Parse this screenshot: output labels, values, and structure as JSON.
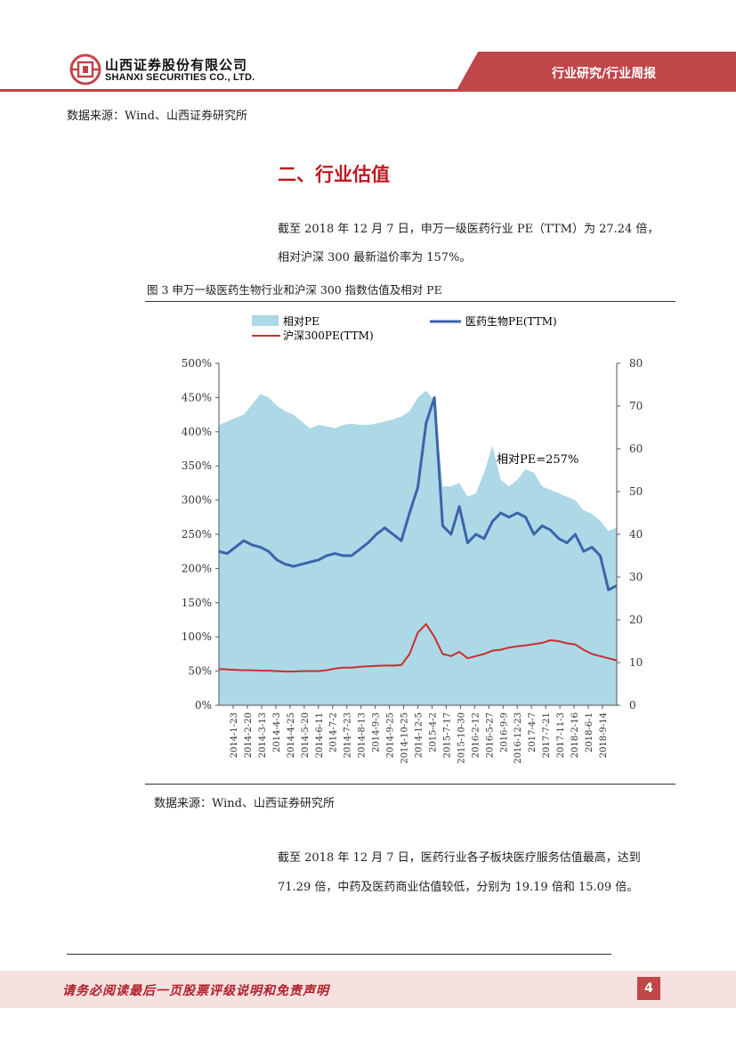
{
  "header": {
    "company_cn": "山西证券股份有限公司",
    "company_en": "SHANXI SECURITIES CO., LTD.",
    "category": "行业研究/行业周报",
    "colors": {
      "accent": "#c0464a",
      "title_red": "#c01820"
    }
  },
  "source_top": "数据来源：Wind、山西证券研究所",
  "section_title": "二、行业估值",
  "para1_line1": "截至 2018 年 12 月 7 日，申万一级医药行业 PE（TTM）为 27.24 倍，",
  "para1_line2": "相对沪深 300 最新溢价率为 157%。",
  "figure_title": "图 3  申万一级医药生物行业和沪深 300 指数估值及相对 PE",
  "source_figure": "数据来源：Wind、山西证券研究所",
  "para2_line1": "截至 2018 年 12 月 7 日，医药行业各子板块医疗服务估值最高，达到",
  "para2_line2": "71.29 倍，中药及医药商业估值较低，分别为 19.19 倍和 15.09 倍。",
  "footer_text": "请务必阅读最后一页股票评级说明和免责声明",
  "page_number": "4",
  "chart_data": {
    "type": "area",
    "legend": {
      "relative": "相对PE",
      "pharma": "医药生物PE(TTM)",
      "hs300": "沪深300PE(TTM)"
    },
    "annotation": "相对PE=257%",
    "left_axis": {
      "ylim": [
        0,
        500
      ],
      "ticks": [
        "0%",
        "50%",
        "100%",
        "150%",
        "200%",
        "250%",
        "300%",
        "350%",
        "400%",
        "450%",
        "500%"
      ]
    },
    "right_axis": {
      "ylim": [
        0,
        80
      ],
      "ticks": [
        "0",
        "10",
        "20",
        "30",
        "40",
        "50",
        "60",
        "70",
        "80"
      ]
    },
    "x_ticks": [
      "2014-1-23",
      "2014-2-20",
      "2014-3-13",
      "2014-4-3",
      "2014-4-25",
      "2014-5-20",
      "2014-6-11",
      "2014-7-2",
      "2014-7-23",
      "2014-8-13",
      "2014-9-3",
      "2014-9-25",
      "2014-10-25",
      "2014-12-5",
      "2015-4-2",
      "2015-7-17",
      "2015-10-30",
      "2016-2-12",
      "2016-5-27",
      "2016-9-9",
      "2016-12-23",
      "2017-4-7",
      "2017-7-21",
      "2017-11-3",
      "2018-2-16",
      "2018-6-1",
      "2018-9-14"
    ],
    "series": [
      {
        "name": "相对PE",
        "axis": "left",
        "color": "#add8e6",
        "values": [
          410,
          415,
          420,
          425,
          440,
          455,
          450,
          438,
          430,
          425,
          415,
          405,
          410,
          408,
          405,
          410,
          412,
          410,
          410,
          412,
          415,
          418,
          422,
          430,
          450,
          460,
          445,
          320,
          320,
          325,
          305,
          310,
          340,
          380,
          330,
          320,
          330,
          345,
          340,
          320,
          315,
          310,
          305,
          300,
          285,
          280,
          270,
          255,
          260
        ]
      },
      {
        "name": "医药生物PE(TTM)",
        "axis": "right",
        "color": "#3c64aa",
        "values": [
          36,
          35.5,
          37,
          38.5,
          37.5,
          37,
          36,
          34,
          33,
          32.5,
          33,
          33.5,
          34,
          35,
          35.5,
          35,
          35,
          36.5,
          38,
          40,
          41.5,
          40,
          38.5,
          45,
          51,
          66,
          72,
          42,
          40,
          46.5,
          38,
          40,
          39,
          43,
          45,
          44,
          45,
          44,
          40,
          42,
          41,
          39,
          38,
          40,
          36,
          37,
          35,
          27,
          28
        ]
      },
      {
        "name": "沪深300PE(TTM)",
        "axis": "right",
        "color": "#c8302c",
        "values": [
          8.5,
          8.4,
          8.3,
          8.2,
          8.2,
          8.1,
          8.1,
          8.0,
          7.9,
          7.9,
          8.0,
          8.0,
          8.0,
          8.2,
          8.6,
          8.8,
          8.8,
          9.0,
          9.1,
          9.2,
          9.3,
          9.3,
          9.4,
          12,
          17,
          19,
          16,
          12,
          11.5,
          12.5,
          11,
          11.5,
          12,
          12.8,
          13,
          13.5,
          13.8,
          14,
          14.3,
          14.6,
          15.2,
          15,
          14.5,
          14.2,
          13,
          12,
          11.5,
          11,
          10.5
        ]
      }
    ]
  }
}
